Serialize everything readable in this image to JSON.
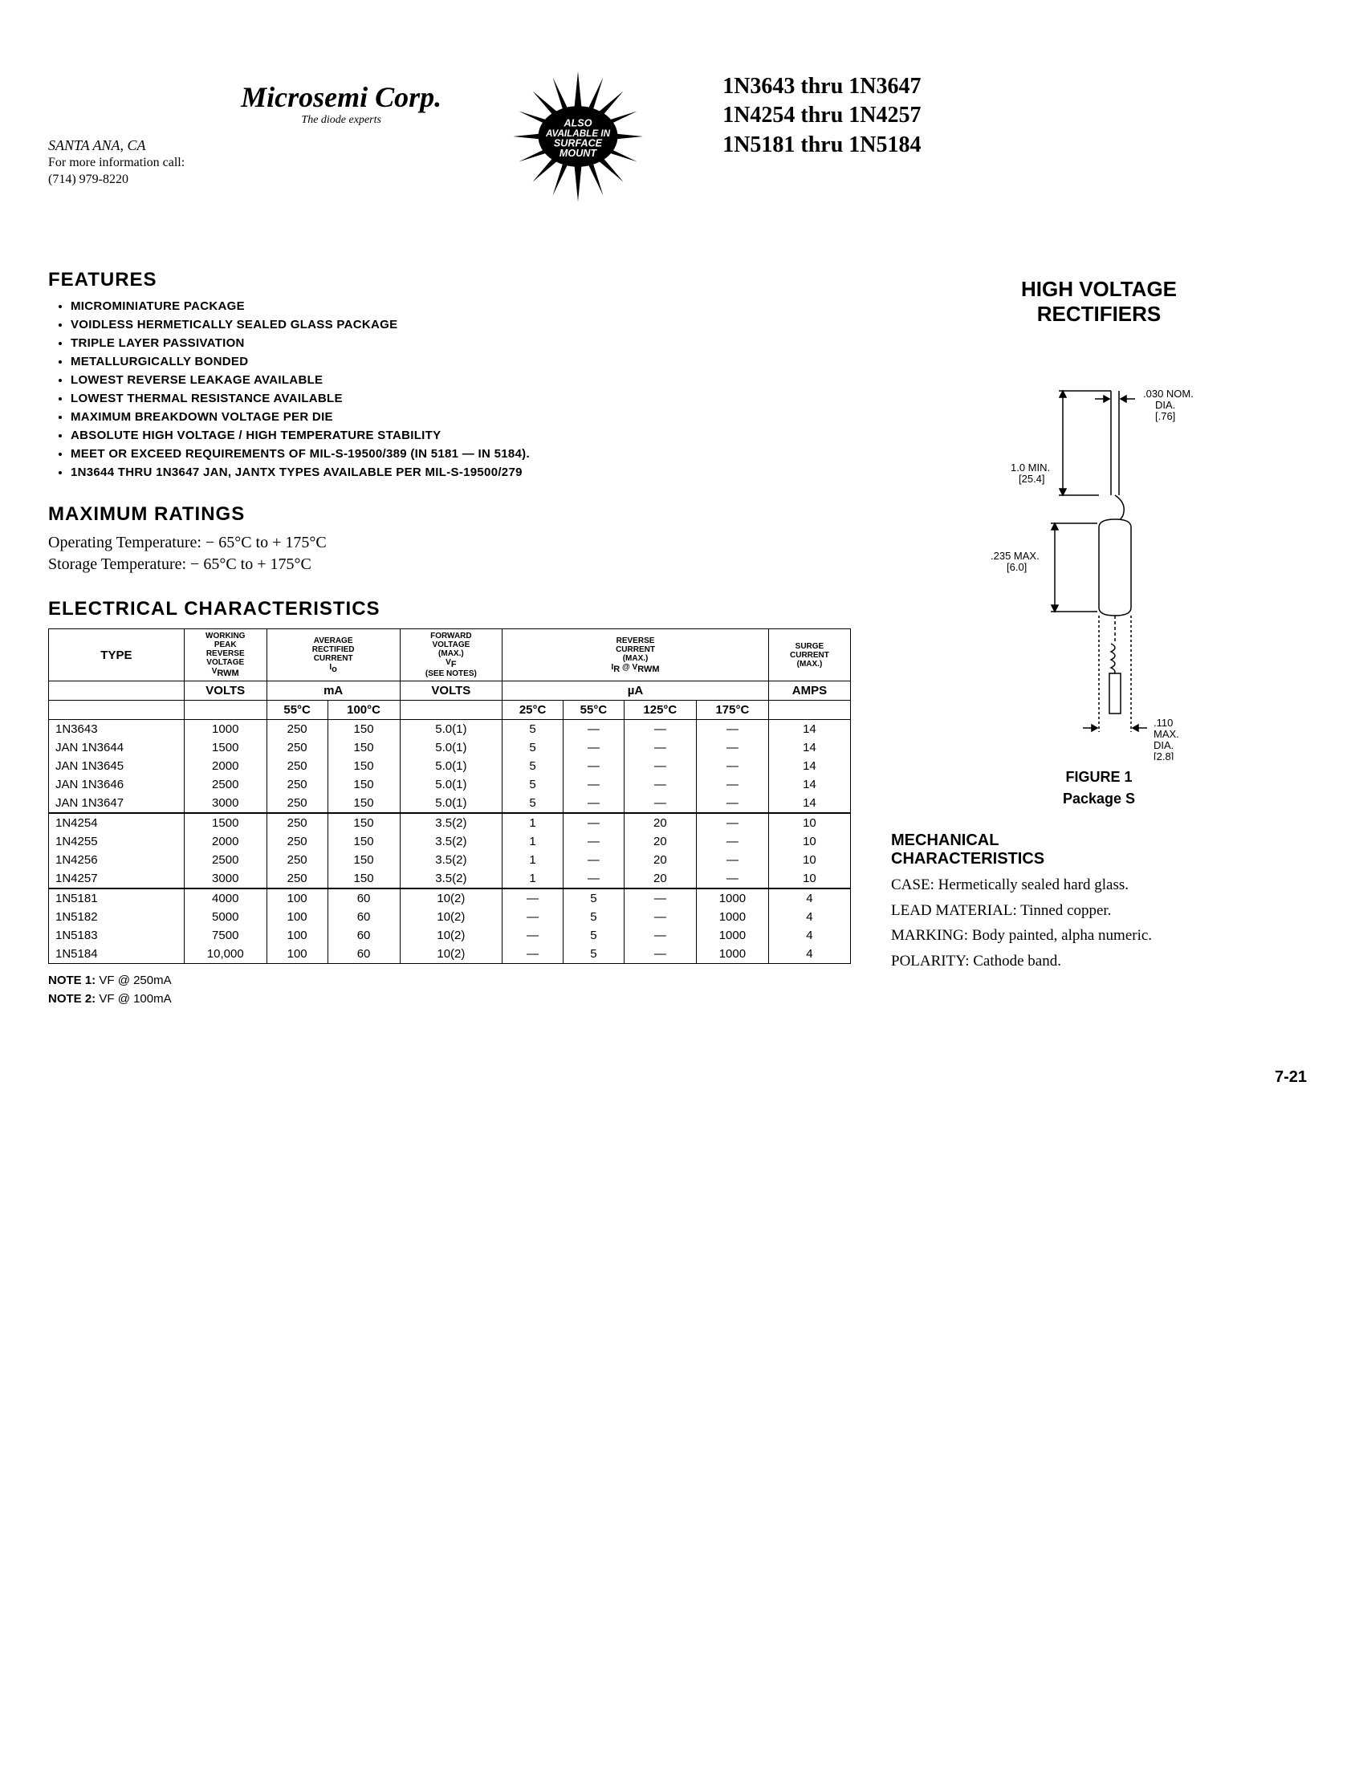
{
  "brand": {
    "name": "Microsemi Corp.",
    "tagline": "The diode experts"
  },
  "address": {
    "city": "SANTA ANA, CA",
    "info_line": "For more information call:",
    "phone": "(714) 979-8220"
  },
  "starburst_text": "ALSO AVAILABLE IN SURFACE MOUNT",
  "part_number_lines": [
    "1N3643 thru 1N3647",
    "1N4254 thru 1N4257",
    "1N5181 thru 1N5184"
  ],
  "product_category": "HIGH VOLTAGE RECTIFIERS",
  "sections": {
    "features_title": "FEATURES",
    "ratings_title": "MAXIMUM RATINGS",
    "elec_title": "ELECTRICAL CHARACTERISTICS",
    "mech_title": "MECHANICAL CHARACTERISTICS"
  },
  "features": [
    "MICROMINIATURE PACKAGE",
    "VOIDLESS HERMETICALLY SEALED GLASS PACKAGE",
    "TRIPLE LAYER PASSIVATION",
    "METALLURGICALLY BONDED",
    "LOWEST REVERSE LEAKAGE AVAILABLE",
    "LOWEST THERMAL RESISTANCE AVAILABLE",
    "MAXIMUM BREAKDOWN VOLTAGE PER DIE",
    "ABSOLUTE HIGH VOLTAGE / HIGH TEMPERATURE STABILITY",
    "MEET OR EXCEED REQUIREMENTS OF MIL-S-19500/389 (IN 5181 — IN 5184).",
    "1N3644 THRU 1N3647 JAN, JANTX TYPES AVAILABLE PER MIL-S-19500/279"
  ],
  "ratings": {
    "operating": "Operating Temperature: − 65°C to + 175°C",
    "storage": "Storage Temperature: − 65°C to + 175°C"
  },
  "elec_table": {
    "headers": {
      "type": "TYPE",
      "vrwm": "WORKING PEAK REVERSE VOLTAGE VRWM",
      "io": "AVERAGE RECTIFIED CURRENT Io",
      "vf": "FORWARD VOLTAGE (MAX.) VF (SEE NOTES)",
      "ir": "REVERSE CURRENT (MAX.) IR @ VRWM",
      "surge": "SURGE CURRENT (MAX.)"
    },
    "unit_row": {
      "volts": "VOLTS",
      "ma": "mA",
      "volts2": "VOLTS",
      "ua": "µA",
      "amps": "AMPS"
    },
    "temp_row": {
      "t55": "55°C",
      "t100": "100°C",
      "t25": "25°C",
      "t55b": "55°C",
      "t125": "125°C",
      "t175": "175°C"
    },
    "rows": [
      {
        "type": "1N3643",
        "vrwm": "1000",
        "i55": "250",
        "i100": "150",
        "vf": "5.0(1)",
        "ir25": "5",
        "ir55": "—",
        "ir125": "—",
        "ir175": "—",
        "surge": "14"
      },
      {
        "type": "JAN 1N3644",
        "vrwm": "1500",
        "i55": "250",
        "i100": "150",
        "vf": "5.0(1)",
        "ir25": "5",
        "ir55": "—",
        "ir125": "—",
        "ir175": "—",
        "surge": "14"
      },
      {
        "type": "JAN 1N3645",
        "vrwm": "2000",
        "i55": "250",
        "i100": "150",
        "vf": "5.0(1)",
        "ir25": "5",
        "ir55": "—",
        "ir125": "—",
        "ir175": "—",
        "surge": "14"
      },
      {
        "type": "JAN 1N3646",
        "vrwm": "2500",
        "i55": "250",
        "i100": "150",
        "vf": "5.0(1)",
        "ir25": "5",
        "ir55": "—",
        "ir125": "—",
        "ir175": "—",
        "surge": "14"
      },
      {
        "type": "JAN 1N3647",
        "vrwm": "3000",
        "i55": "250",
        "i100": "150",
        "vf": "5.0(1)",
        "ir25": "5",
        "ir55": "—",
        "ir125": "—",
        "ir175": "—",
        "surge": "14"
      },
      {
        "type": "1N4254",
        "vrwm": "1500",
        "i55": "250",
        "i100": "150",
        "vf": "3.5(2)",
        "ir25": "1",
        "ir55": "—",
        "ir125": "20",
        "ir175": "—",
        "surge": "10"
      },
      {
        "type": "1N4255",
        "vrwm": "2000",
        "i55": "250",
        "i100": "150",
        "vf": "3.5(2)",
        "ir25": "1",
        "ir55": "—",
        "ir125": "20",
        "ir175": "—",
        "surge": "10"
      },
      {
        "type": "1N4256",
        "vrwm": "2500",
        "i55": "250",
        "i100": "150",
        "vf": "3.5(2)",
        "ir25": "1",
        "ir55": "—",
        "ir125": "20",
        "ir175": "—",
        "surge": "10"
      },
      {
        "type": "1N4257",
        "vrwm": "3000",
        "i55": "250",
        "i100": "150",
        "vf": "3.5(2)",
        "ir25": "1",
        "ir55": "—",
        "ir125": "20",
        "ir175": "—",
        "surge": "10"
      },
      {
        "type": "1N5181",
        "vrwm": "4000",
        "i55": "100",
        "i100": "60",
        "vf": "10(2)",
        "ir25": "—",
        "ir55": "5",
        "ir125": "—",
        "ir175": "1000",
        "surge": "4"
      },
      {
        "type": "1N5182",
        "vrwm": "5000",
        "i55": "100",
        "i100": "60",
        "vf": "10(2)",
        "ir25": "—",
        "ir55": "5",
        "ir125": "—",
        "ir175": "1000",
        "surge": "4"
      },
      {
        "type": "1N5183",
        "vrwm": "7500",
        "i55": "100",
        "i100": "60",
        "vf": "10(2)",
        "ir25": "—",
        "ir55": "5",
        "ir125": "—",
        "ir175": "1000",
        "surge": "4"
      },
      {
        "type": "1N5184",
        "vrwm": "10,000",
        "i55": "100",
        "i100": "60",
        "vf": "10(2)",
        "ir25": "—",
        "ir55": "5",
        "ir125": "—",
        "ir175": "1000",
        "surge": "4"
      }
    ],
    "group_breaks": [
      5,
      9
    ]
  },
  "notes": {
    "n1_label": "NOTE 1:",
    "n1_text": "VF @ 250mA",
    "n2_label": "NOTE 2:",
    "n2_text": "VF @ 100mA"
  },
  "figure": {
    "caption_line1": "FIGURE 1",
    "caption_line2": "Package S",
    "dim_lead_dia": ".030 NOM. DIA. [.76]",
    "dim_lead_len": "1.0 MIN. [25.4]",
    "dim_body_len": ".235 MAX. [6.0]",
    "dim_body_dia": ".110 MAX. DIA. [2.8]"
  },
  "mechanical": {
    "case": "CASE: Hermetically sealed hard glass.",
    "lead": "LEAD MATERIAL: Tinned copper.",
    "marking": "MARKING: Body painted, alpha numeric.",
    "polarity": "POLARITY: Cathode band."
  },
  "page_number": "7-21",
  "colors": {
    "text": "#000000",
    "bg": "#ffffff"
  }
}
